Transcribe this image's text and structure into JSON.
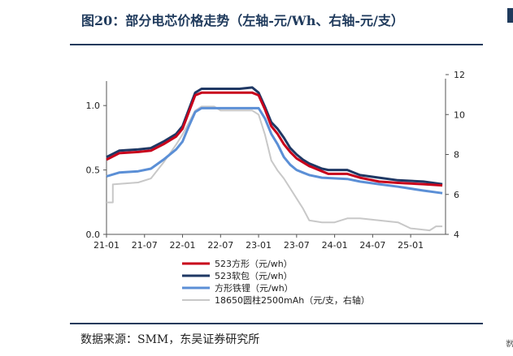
{
  "figure": {
    "title": "图20：部分电芯价格走势（左轴-元/Wh、右轴-元/支）",
    "source": "数据来源：SMM，东吴证券研究所",
    "next_column_char": "数"
  },
  "colors": {
    "rule": "#1f3a5c",
    "s523_square": "#c8001b",
    "s523_pouch": "#1f3864",
    "lfp_square": "#5b8fd6",
    "cyl18650": "#c8c8c8"
  },
  "chart_data": {
    "type": "line",
    "x_ticks": [
      "21-01",
      "21-07",
      "22-01",
      "22-07",
      "23-01",
      "23-07",
      "24-01",
      "24-07",
      "25-01"
    ],
    "xlim": [
      "2021-01",
      "2025-06"
    ],
    "y_left": {
      "ylim": [
        0,
        1.0
      ],
      "ticks": [
        "0.0",
        "0.5",
        "1.0"
      ],
      "unit": "元/Wh"
    },
    "y_right": {
      "ylim": [
        4,
        12
      ],
      "ticks": [
        "4",
        "6",
        "8",
        "10",
        "12"
      ],
      "unit": "元/支"
    },
    "grid": false,
    "legend_position": "bottom",
    "series": [
      {
        "name": "523方形（元/wh）",
        "axis": "left",
        "color": "#c8001b",
        "points": [
          [
            "2021-01",
            0.58
          ],
          [
            "2021-03",
            0.63
          ],
          [
            "2021-06",
            0.64
          ],
          [
            "2021-08",
            0.65
          ],
          [
            "2021-10",
            0.7
          ],
          [
            "2021-12",
            0.76
          ],
          [
            "2022-01",
            0.82
          ],
          [
            "2022-02",
            0.95
          ],
          [
            "2022-03",
            1.08
          ],
          [
            "2022-04",
            1.1
          ],
          [
            "2022-07",
            1.1
          ],
          [
            "2022-10",
            1.1
          ],
          [
            "2022-12",
            1.1
          ],
          [
            "2023-01",
            1.08
          ],
          [
            "2023-02",
            0.97
          ],
          [
            "2023-03",
            0.84
          ],
          [
            "2023-04",
            0.78
          ],
          [
            "2023-05",
            0.7
          ],
          [
            "2023-06",
            0.64
          ],
          [
            "2023-07",
            0.59
          ],
          [
            "2023-08",
            0.56
          ],
          [
            "2023-09",
            0.53
          ],
          [
            "2023-11",
            0.49
          ],
          [
            "2023-12",
            0.47
          ],
          [
            "2024-03",
            0.47
          ],
          [
            "2024-05",
            0.44
          ],
          [
            "2024-08",
            0.41
          ],
          [
            "2024-11",
            0.4
          ],
          [
            "2025-03",
            0.39
          ],
          [
            "2025-06",
            0.38
          ]
        ]
      },
      {
        "name": "523软包（元/wh）",
        "axis": "left",
        "color": "#1f3864",
        "points": [
          [
            "2021-01",
            0.6
          ],
          [
            "2021-03",
            0.65
          ],
          [
            "2021-06",
            0.66
          ],
          [
            "2021-08",
            0.67
          ],
          [
            "2021-10",
            0.72
          ],
          [
            "2021-12",
            0.78
          ],
          [
            "2022-01",
            0.84
          ],
          [
            "2022-02",
            0.97
          ],
          [
            "2022-03",
            1.1
          ],
          [
            "2022-04",
            1.13
          ],
          [
            "2022-07",
            1.13
          ],
          [
            "2022-10",
            1.13
          ],
          [
            "2022-12",
            1.14
          ],
          [
            "2023-01",
            1.1
          ],
          [
            "2023-02",
            0.99
          ],
          [
            "2023-03",
            0.87
          ],
          [
            "2023-04",
            0.82
          ],
          [
            "2023-05",
            0.75
          ],
          [
            "2023-06",
            0.67
          ],
          [
            "2023-07",
            0.62
          ],
          [
            "2023-08",
            0.58
          ],
          [
            "2023-09",
            0.55
          ],
          [
            "2023-11",
            0.51
          ],
          [
            "2023-12",
            0.5
          ],
          [
            "2024-03",
            0.5
          ],
          [
            "2024-05",
            0.46
          ],
          [
            "2024-08",
            0.44
          ],
          [
            "2024-11",
            0.42
          ],
          [
            "2025-03",
            0.41
          ],
          [
            "2025-06",
            0.39
          ]
        ]
      },
      {
        "name": "方形铁锂（元/wh）",
        "axis": "left",
        "color": "#5b8fd6",
        "points": [
          [
            "2021-01",
            0.45
          ],
          [
            "2021-03",
            0.48
          ],
          [
            "2021-06",
            0.49
          ],
          [
            "2021-08",
            0.51
          ],
          [
            "2021-10",
            0.58
          ],
          [
            "2021-12",
            0.66
          ],
          [
            "2022-01",
            0.72
          ],
          [
            "2022-02",
            0.84
          ],
          [
            "2022-03",
            0.95
          ],
          [
            "2022-04",
            0.98
          ],
          [
            "2022-07",
            0.98
          ],
          [
            "2022-10",
            0.98
          ],
          [
            "2022-12",
            0.98
          ],
          [
            "2023-01",
            0.98
          ],
          [
            "2023-02",
            0.9
          ],
          [
            "2023-03",
            0.78
          ],
          [
            "2023-04",
            0.7
          ],
          [
            "2023-05",
            0.6
          ],
          [
            "2023-06",
            0.54
          ],
          [
            "2023-07",
            0.5
          ],
          [
            "2023-08",
            0.48
          ],
          [
            "2023-09",
            0.46
          ],
          [
            "2023-11",
            0.44
          ],
          [
            "2024-03",
            0.43
          ],
          [
            "2024-05",
            0.41
          ],
          [
            "2024-08",
            0.39
          ],
          [
            "2024-11",
            0.37
          ],
          [
            "2025-03",
            0.34
          ],
          [
            "2025-06",
            0.32
          ]
        ]
      },
      {
        "name": "18650圆柱2500mAh（元/支，右轴）",
        "axis": "right",
        "color": "#c8c8c8",
        "points": [
          [
            "2021-01",
            5.6
          ],
          [
            "2021-02",
            5.6
          ],
          [
            "2021-02",
            6.5
          ],
          [
            "2021-06",
            6.6
          ],
          [
            "2021-08",
            6.8
          ],
          [
            "2021-10",
            7.6
          ],
          [
            "2021-12",
            8.5
          ],
          [
            "2022-01",
            9.0
          ],
          [
            "2022-02",
            9.6
          ],
          [
            "2022-03",
            10.2
          ],
          [
            "2022-04",
            10.4
          ],
          [
            "2022-06",
            10.4
          ],
          [
            "2022-07",
            10.2
          ],
          [
            "2022-10",
            10.2
          ],
          [
            "2022-12",
            10.2
          ],
          [
            "2023-01",
            10.0
          ],
          [
            "2023-02",
            9.0
          ],
          [
            "2023-03",
            7.7
          ],
          [
            "2023-04",
            7.2
          ],
          [
            "2023-05",
            6.8
          ],
          [
            "2023-06",
            6.3
          ],
          [
            "2023-07",
            5.8
          ],
          [
            "2023-08",
            5.3
          ],
          [
            "2023-09",
            4.7
          ],
          [
            "2023-11",
            4.6
          ],
          [
            "2024-01",
            4.6
          ],
          [
            "2024-03",
            4.8
          ],
          [
            "2024-05",
            4.8
          ],
          [
            "2024-08",
            4.7
          ],
          [
            "2024-11",
            4.6
          ],
          [
            "2025-01",
            4.3
          ],
          [
            "2025-04",
            4.2
          ],
          [
            "2025-05",
            4.4
          ],
          [
            "2025-06",
            4.4
          ]
        ]
      }
    ]
  }
}
